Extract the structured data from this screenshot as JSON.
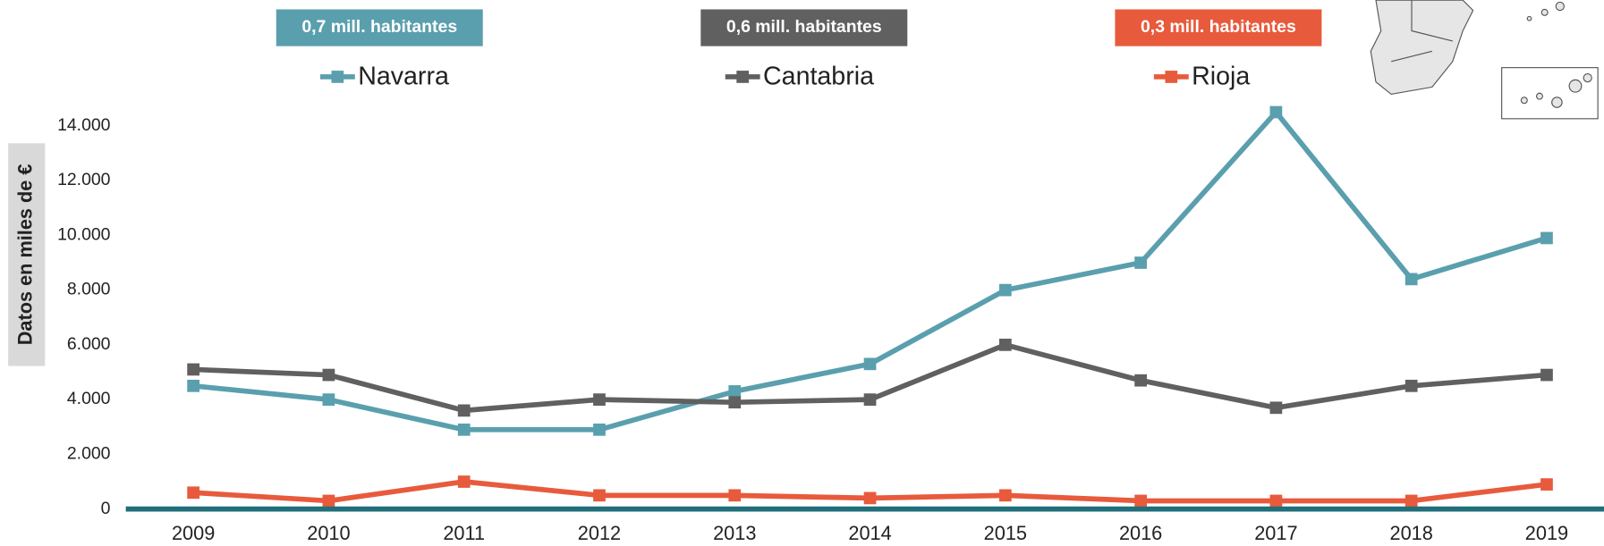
{
  "chart_data": {
    "type": "line",
    "y_label": "Datos en miles de €",
    "x": [
      "2009",
      "2010",
      "2011",
      "2012",
      "2013",
      "2014",
      "2015",
      "2016",
      "2017",
      "2018",
      "2019"
    ],
    "series": [
      {
        "name": "Navarra",
        "color": "#5a9fae",
        "annotation": "0,7 mill. habitantes",
        "values": [
          4500,
          4000,
          2900,
          2900,
          4300,
          5300,
          8000,
          9000,
          14500,
          8400,
          9900
        ]
      },
      {
        "name": "Cantabria",
        "color": "#606060",
        "annotation": "0,6 mill. habitantes",
        "values": [
          5100,
          4900,
          3600,
          4000,
          3900,
          4000,
          6000,
          4700,
          3700,
          4500,
          4900
        ]
      },
      {
        "name": "Rioja",
        "color": "#e85a3c",
        "annotation": "0,3 mill. habitantes",
        "values": [
          600,
          300,
          1000,
          500,
          500,
          400,
          500,
          300,
          300,
          300,
          900
        ]
      }
    ],
    "ylim": [
      0,
      14000
    ],
    "yticks": [
      0,
      {
        "value": 2000,
        "label": "2.000"
      },
      {
        "value": 4000,
        "label": "4.000"
      },
      {
        "value": 6000,
        "label": "6.000"
      },
      {
        "value": 8000,
        "label": "8.000"
      },
      {
        "value": 10000,
        "label": "10.000"
      },
      {
        "value": 12000,
        "label": "12.000"
      },
      {
        "value": 14000,
        "label": "14.000"
      }
    ],
    "grid": false
  }
}
